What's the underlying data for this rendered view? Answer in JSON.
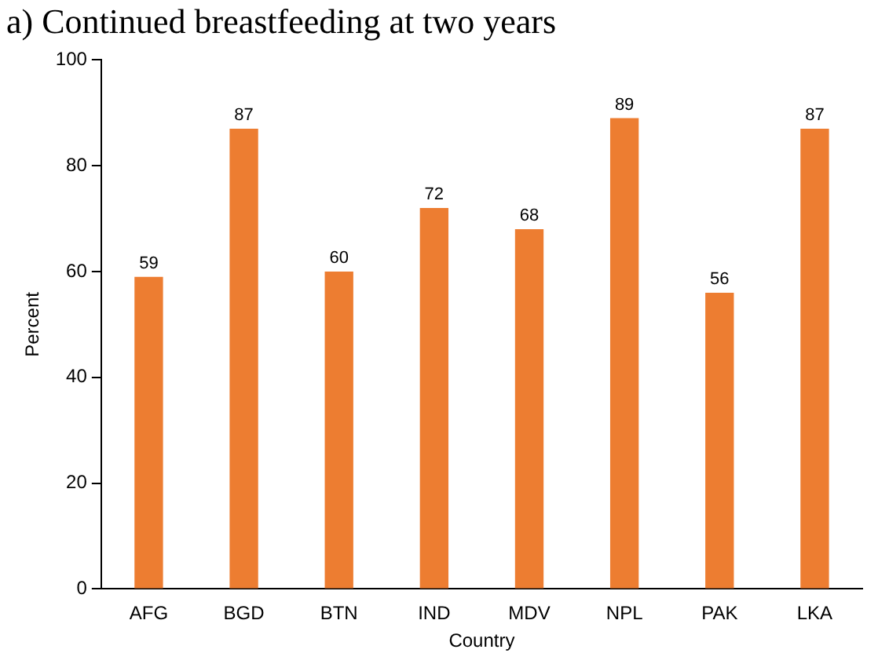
{
  "chart_data": {
    "type": "bar",
    "title": "a) Continued breastfeeding at two years",
    "xlabel": "Country",
    "ylabel": "Percent",
    "categories": [
      "AFG",
      "BGD",
      "BTN",
      "IND",
      "MDV",
      "NPL",
      "PAK",
      "LKA"
    ],
    "values": [
      59,
      87,
      60,
      72,
      68,
      89,
      56,
      87
    ],
    "color": "#ed7d31",
    "data_labels": true,
    "ylim": [
      0,
      100
    ],
    "yticks": [
      0,
      20,
      40,
      60,
      80,
      100
    ],
    "grid": false,
    "legend": false
  }
}
